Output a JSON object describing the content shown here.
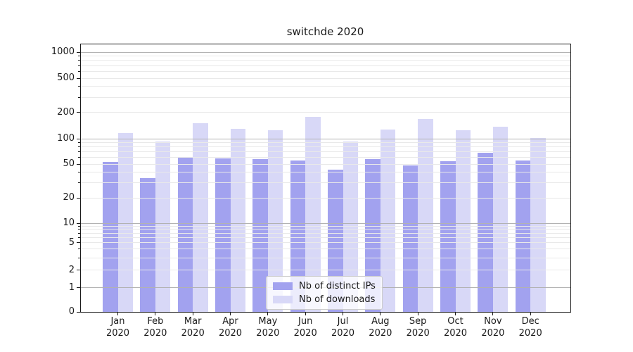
{
  "chart_data": {
    "type": "bar",
    "title": "switchde 2020",
    "categories": [
      {
        "month": "Jan",
        "year": "2020"
      },
      {
        "month": "Feb",
        "year": "2020"
      },
      {
        "month": "Mar",
        "year": "2020"
      },
      {
        "month": "Apr",
        "year": "2020"
      },
      {
        "month": "May",
        "year": "2020"
      },
      {
        "month": "Jun",
        "year": "2020"
      },
      {
        "month": "Jul",
        "year": "2020"
      },
      {
        "month": "Aug",
        "year": "2020"
      },
      {
        "month": "Sep",
        "year": "2020"
      },
      {
        "month": "Oct",
        "year": "2020"
      },
      {
        "month": "Nov",
        "year": "2020"
      },
      {
        "month": "Dec",
        "year": "2020"
      }
    ],
    "series": [
      {
        "name": "Nb of distinct IPs",
        "color": "#a2a2ef",
        "values": [
          53,
          34,
          61,
          58,
          57,
          55,
          43,
          57,
          48,
          54,
          68,
          55
        ]
      },
      {
        "name": "Nb of downloads",
        "color": "#d8d8f7",
        "values": [
          117,
          93,
          150,
          130,
          125,
          176,
          93,
          126,
          167,
          125,
          138,
          102
        ]
      }
    ],
    "xlabel": "",
    "ylabel": "",
    "yscale": "symlog",
    "ylim": [
      0,
      1250
    ],
    "ytick_labels": [
      "1000",
      "500",
      "200",
      "100",
      "50",
      "20",
      "10",
      "5",
      "2",
      "1",
      "0"
    ],
    "grid": "horizontal, major and minor, drawn above bars",
    "legend_position": "lower-center"
  },
  "colors": {
    "background": "#ffffff",
    "bar_distinct_ips": "#a2a2ef",
    "bar_downloads": "#d8d8f7",
    "major_grid": "#b2b2b2",
    "minor_grid": "#e9e9e9",
    "spine": "#1a1a1a",
    "text": "#1a1a1a",
    "legend_border": "#cccccc"
  }
}
